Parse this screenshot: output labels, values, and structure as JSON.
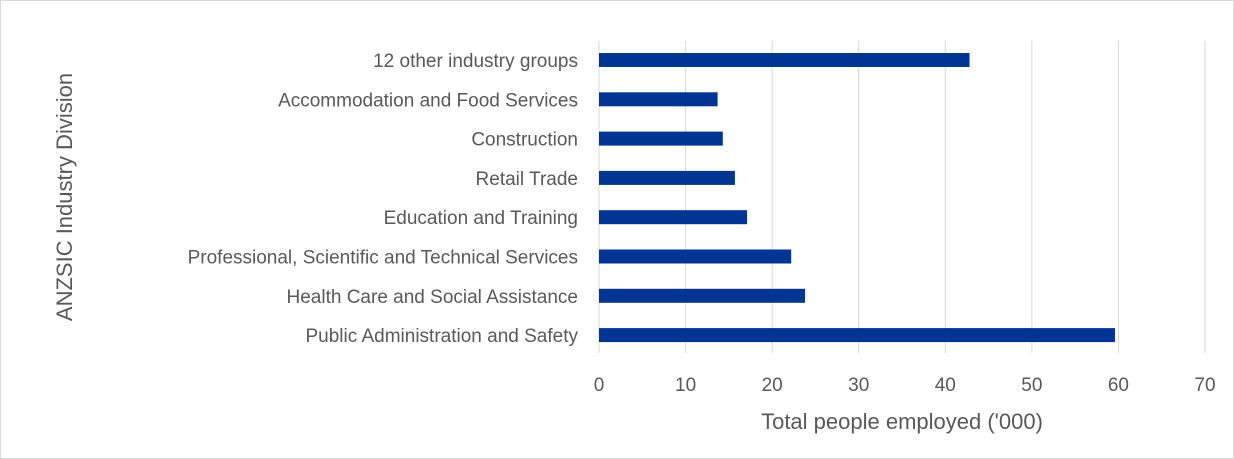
{
  "chart_data": {
    "type": "bar",
    "orientation": "horizontal",
    "categories": [
      "12 other industry groups",
      "Accommodation and Food Services",
      "Construction",
      "Retail Trade",
      "Education and Training",
      "Professional, Scientific and Technical Services",
      "Health Care and Social Assistance",
      "Public Administration and Safety"
    ],
    "values": [
      42.8,
      13.7,
      14.3,
      15.7,
      17.1,
      22.2,
      23.8,
      59.6
    ],
    "xlabel": "Total people employed ('000)",
    "ylabel": "ANZSIC Industry Division",
    "xlim": [
      0,
      70
    ],
    "xticks": [
      0,
      10,
      20,
      30,
      40,
      50,
      60,
      70
    ],
    "grid": "vertical",
    "legend": "none",
    "bar_color": "#003594",
    "grid_color": "#d9d9d9",
    "text_color": "#595959"
  }
}
